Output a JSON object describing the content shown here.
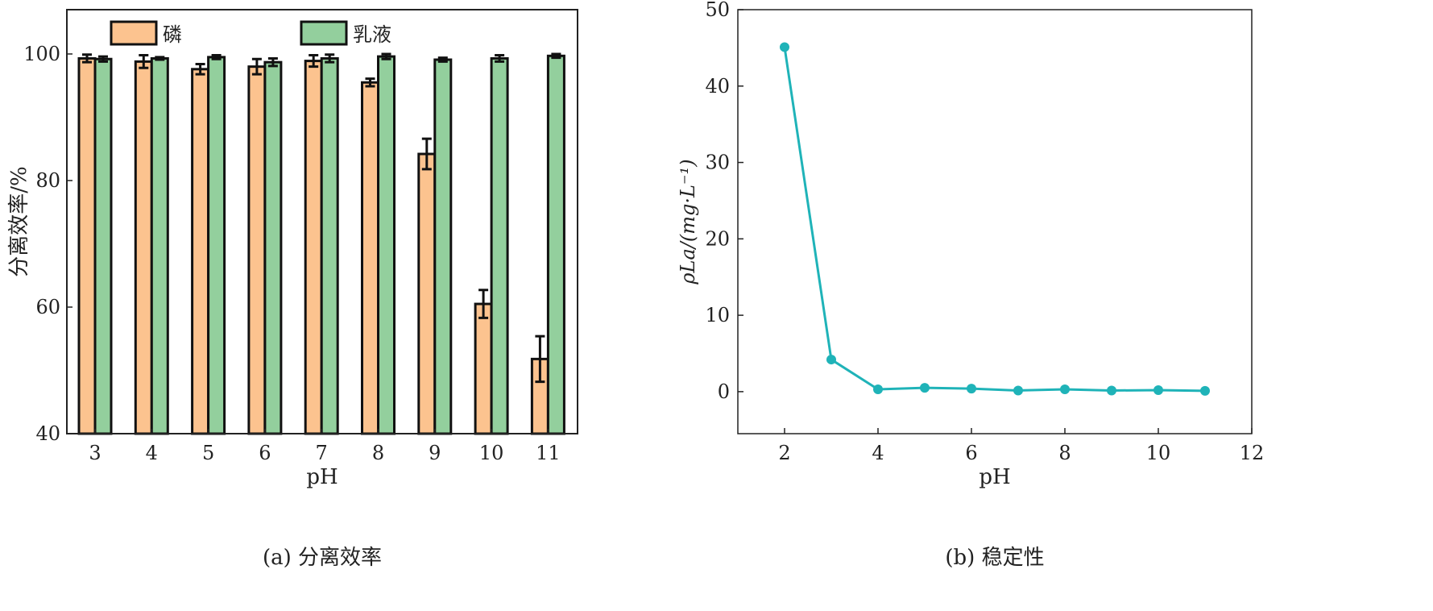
{
  "chart_data": [
    {
      "type": "bar",
      "caption": "(a) 分离效率",
      "xlabel": "pH",
      "ylabel": "分离效率/%",
      "ylim": [
        40,
        107
      ],
      "yticks": [
        40,
        60,
        80,
        100
      ],
      "categories": [
        "3",
        "4",
        "5",
        "6",
        "7",
        "8",
        "9",
        "10",
        "11"
      ],
      "legend_position": "top",
      "series": [
        {
          "name": "磷",
          "color": "#fcc38f",
          "values": [
            99.3,
            98.8,
            97.6,
            98.0,
            98.9,
            95.5,
            84.2,
            60.5,
            51.8
          ],
          "errors": [
            0.6,
            1.0,
            0.8,
            1.2,
            0.9,
            0.6,
            2.4,
            2.2,
            3.6
          ]
        },
        {
          "name": "乳液",
          "color": "#93cf9d",
          "values": [
            99.2,
            99.3,
            99.5,
            98.7,
            99.3,
            99.6,
            99.1,
            99.3,
            99.7
          ],
          "errors": [
            0.4,
            0.2,
            0.3,
            0.6,
            0.6,
            0.4,
            0.3,
            0.5,
            0.3
          ]
        }
      ]
    },
    {
      "type": "line",
      "caption": "(b) 稳定性",
      "xlabel": "pH",
      "ylabel": "ρLa/(mg·L⁻¹)",
      "xlim": [
        1,
        12
      ],
      "ylim": [
        -5.5,
        50
      ],
      "xticks": [
        2,
        4,
        6,
        8,
        10,
        12
      ],
      "yticks": [
        0,
        10,
        20,
        30,
        40,
        50
      ],
      "color": "#1fb3b8",
      "x": [
        2,
        3,
        4,
        5,
        6,
        7,
        8,
        9,
        10,
        11
      ],
      "y": [
        45.1,
        4.2,
        0.3,
        0.5,
        0.4,
        0.15,
        0.3,
        0.15,
        0.2,
        0.1
      ]
    }
  ]
}
